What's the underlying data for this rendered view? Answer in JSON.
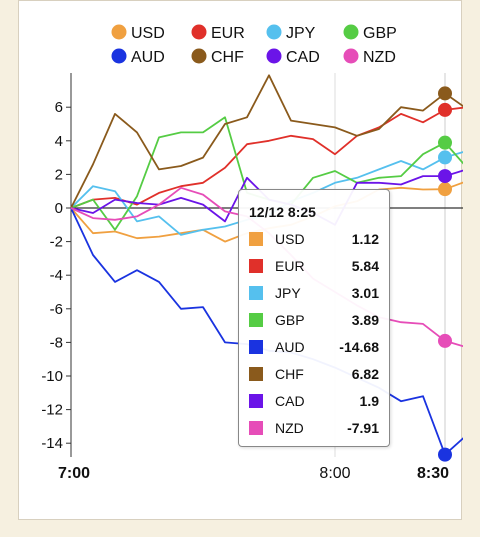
{
  "chart_data": {
    "type": "line",
    "x_ticks": [
      "7:00",
      "8:00",
      "8:30"
    ],
    "y_ticks": [
      "6",
      "4",
      "2",
      "0",
      "-2",
      "-4",
      "-6",
      "-8",
      "-10",
      "-12",
      "-14"
    ],
    "ylim": [
      -15,
      8
    ],
    "x_times": [
      "7:00",
      "7:05",
      "7:10",
      "7:15",
      "7:20",
      "7:25",
      "7:30",
      "7:35",
      "7:40",
      "7:45",
      "7:50",
      "7:55",
      "8:00",
      "8:05",
      "8:10",
      "8:15",
      "8:20",
      "8:25",
      "8:30"
    ],
    "series": [
      {
        "name": "USD",
        "color": "#f0a040",
        "values": [
          0,
          -1.5,
          -1.4,
          -1.8,
          -1.7,
          -1.5,
          -1.3,
          -2.0,
          -1.5,
          -1.2,
          -1.0,
          -0.5,
          0.1,
          0.4,
          1.1,
          1.2,
          1.1,
          1.12,
          1.6
        ]
      },
      {
        "name": "EUR",
        "color": "#e0302a",
        "values": [
          0,
          0.5,
          0.6,
          0.2,
          0.9,
          1.3,
          1.5,
          2.4,
          3.8,
          4.0,
          4.3,
          4.1,
          3.2,
          4.3,
          4.8,
          5.6,
          5.1,
          5.84,
          6.0
        ]
      },
      {
        "name": "JPY",
        "color": "#55c0ee",
        "values": [
          0,
          1.3,
          1.0,
          -0.8,
          -0.5,
          -1.6,
          -1.3,
          -1.1,
          -0.7,
          -0.4,
          0.4,
          0.9,
          1.5,
          1.8,
          2.3,
          2.8,
          2.3,
          3.01,
          3.4
        ]
      },
      {
        "name": "GBP",
        "color": "#55cc44",
        "values": [
          0,
          0.5,
          -1.3,
          0.7,
          4.2,
          4.5,
          4.5,
          5.4,
          0.9,
          0.5,
          0.2,
          1.8,
          2.2,
          1.5,
          1.8,
          1.9,
          3.2,
          3.89,
          2.4
        ]
      },
      {
        "name": "AUD",
        "color": "#1a33e0",
        "values": [
          0,
          -2.8,
          -4.4,
          -3.7,
          -4.4,
          -6.0,
          -5.9,
          -8.0,
          -8.1,
          -8.5,
          -8.6,
          -9.0,
          -9.5,
          -10.1,
          -10.7,
          -11.5,
          -11.2,
          -14.68,
          -13.5
        ]
      },
      {
        "name": "CHF",
        "color": "#8a5a1c",
        "values": [
          0,
          2.6,
          5.6,
          4.5,
          2.3,
          2.5,
          3.0,
          5.0,
          5.4,
          7.9,
          5.2,
          5.0,
          4.8,
          4.3,
          4.7,
          6.0,
          5.8,
          6.82,
          5.9
        ]
      },
      {
        "name": "CAD",
        "color": "#6b14e8",
        "values": [
          0,
          -0.3,
          0.5,
          0.3,
          0.2,
          0.6,
          0.2,
          -0.8,
          1.8,
          0.5,
          0.2,
          -0.3,
          -1.0,
          1.5,
          1.5,
          1.4,
          1.9,
          1.9,
          2.3
        ]
      },
      {
        "name": "NZD",
        "color": "#e64db8",
        "values": [
          0,
          -0.6,
          -0.7,
          -0.5,
          0.2,
          1.2,
          0.8,
          -0.2,
          -0.5,
          -1.5,
          -2.8,
          -4.2,
          -5.0,
          -5.8,
          -6.5,
          -6.8,
          -6.9,
          -7.91,
          -8.3
        ]
      }
    ],
    "tooltip": {
      "title": "12/12 8:25",
      "rows": [
        {
          "name": "USD",
          "value": "1.12"
        },
        {
          "name": "EUR",
          "value": "5.84"
        },
        {
          "name": "JPY",
          "value": "3.01"
        },
        {
          "name": "GBP",
          "value": "3.89"
        },
        {
          "name": "AUD",
          "value": "-14.68"
        },
        {
          "name": "CHF",
          "value": "6.82"
        },
        {
          "name": "CAD",
          "value": "1.9"
        },
        {
          "name": "NZD",
          "value": "-7.91"
        }
      ]
    },
    "legend_placement": "top",
    "grid": "vertical"
  }
}
